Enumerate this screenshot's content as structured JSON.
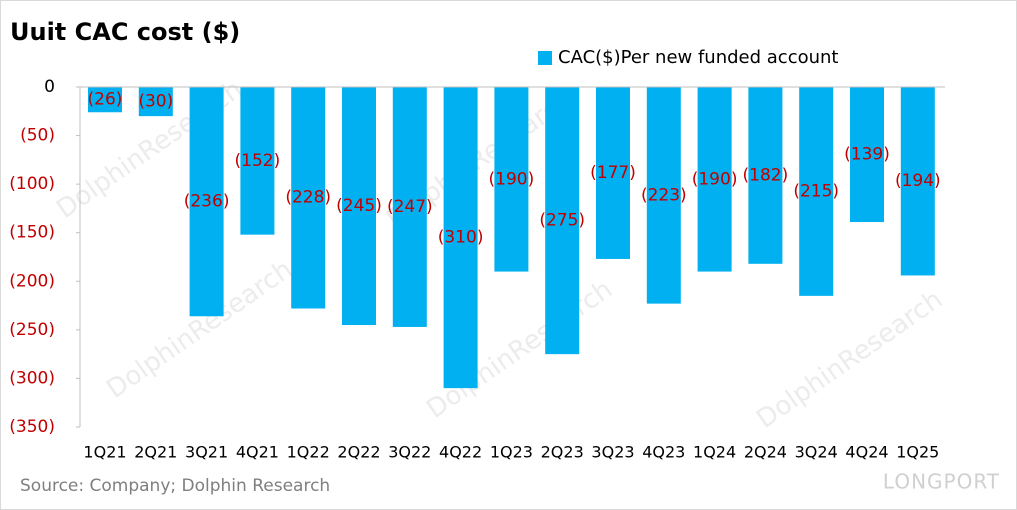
{
  "chart_data": {
    "type": "bar",
    "title": "Uuit CAC cost  ($)",
    "source": "Source: Company; Dolphin Research",
    "watermark": "LONGPORT",
    "watermark_text": "DolphinResearch",
    "categories": [
      "1Q21",
      "2Q21",
      "3Q21",
      "4Q21",
      "1Q22",
      "2Q22",
      "3Q22",
      "4Q22",
      "1Q23",
      "2Q23",
      "3Q23",
      "4Q23",
      "1Q24",
      "2Q24",
      "3Q24",
      "4Q24",
      "1Q25"
    ],
    "series": [
      {
        "name": "CAC($)Per new funded account",
        "color": "#00b0f0",
        "values": [
          -26,
          -30,
          -236,
          -152,
          -228,
          -245,
          -247,
          -310,
          -190,
          -275,
          -177,
          -223,
          -190,
          -182,
          -215,
          -139,
          -194
        ],
        "value_labels": [
          "(26)",
          "(30)",
          "(236)",
          "(152)",
          "(228)",
          "(245)",
          "(247)",
          "(310)",
          "(190)",
          "(275)",
          "(177)",
          "(223)",
          "(190)",
          "(182)",
          "(215)",
          "(139)",
          "(194)"
        ]
      }
    ],
    "ylim": [
      -350,
      0
    ],
    "yticks": [
      0,
      {
        "value": -50,
        "label": "(50)"
      },
      {
        "value": -100,
        "label": "(100)"
      },
      {
        "value": -150,
        "label": "(150)"
      },
      {
        "value": -200,
        "label": "(200)"
      },
      {
        "value": -250,
        "label": "(250)"
      },
      {
        "value": -300,
        "label": "(300)"
      },
      {
        "value": -350,
        "label": "(350)"
      }
    ],
    "legend": "top-right",
    "label_color": "#c00000"
  }
}
